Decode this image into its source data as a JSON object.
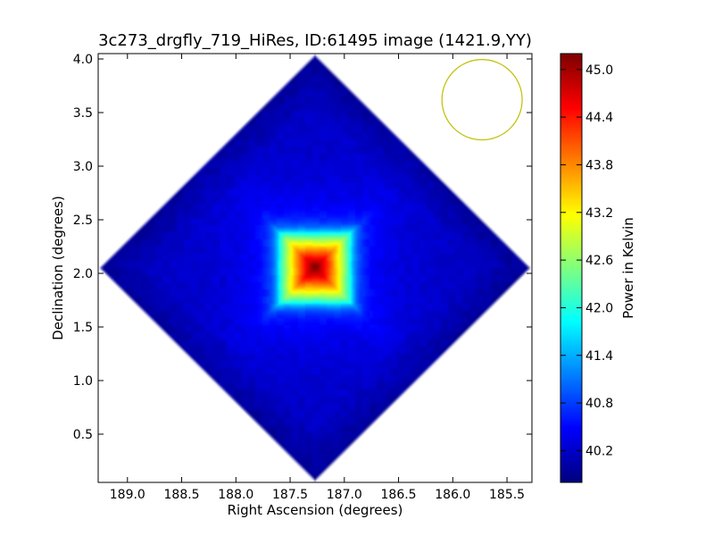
{
  "chart_data": {
    "type": "heatmap",
    "title": "3c273_drgfly_719_HiRes, ID:61495 image (1421.9,YY)",
    "xlabel": "Right Ascension (degrees)",
    "ylabel": "Declination (degrees)",
    "colorbar_label": "Power in Kelvin",
    "colormap": "jet",
    "x_reversed": true,
    "xlim": [
      189.27,
      185.27
    ],
    "ylim": [
      0.05,
      4.05
    ],
    "xticks": [
      189.0,
      188.5,
      188.0,
      187.5,
      187.0,
      186.5,
      186.0,
      185.5
    ],
    "xtick_labels": [
      "189.0",
      "188.5",
      "188.0",
      "187.5",
      "187.0",
      "186.5",
      "186.0",
      "185.5"
    ],
    "yticks": [
      0.5,
      1.0,
      1.5,
      2.0,
      2.5,
      3.0,
      3.5,
      4.0
    ],
    "ytick_labels": [
      "0.5",
      "1.0",
      "1.5",
      "2.0",
      "2.5",
      "3.0",
      "3.5",
      "4.0"
    ],
    "colorbar_range": [
      39.8,
      45.2
    ],
    "colorbar_ticks": [
      40.2,
      40.8,
      41.4,
      42.0,
      42.6,
      43.2,
      43.8,
      44.4,
      45.0
    ],
    "colorbar_tick_labels": [
      "40.2",
      "40.8",
      "41.4",
      "42.0",
      "42.6",
      "43.2",
      "43.8",
      "44.4",
      "45.0"
    ],
    "map": {
      "center_ra": 187.27,
      "center_dec": 2.05,
      "half_extent_deg": 2.0,
      "background_level": 40.15,
      "peak_level": 45.2,
      "source_half_width_deg": 0.32,
      "edge_level": 40.3
    },
    "beam": {
      "ra": 185.73,
      "dec": 3.62,
      "radius_deg": 0.37,
      "color": "#bfbf00"
    }
  },
  "colors": {
    "frame": "#000000",
    "background": "#ffffff"
  }
}
